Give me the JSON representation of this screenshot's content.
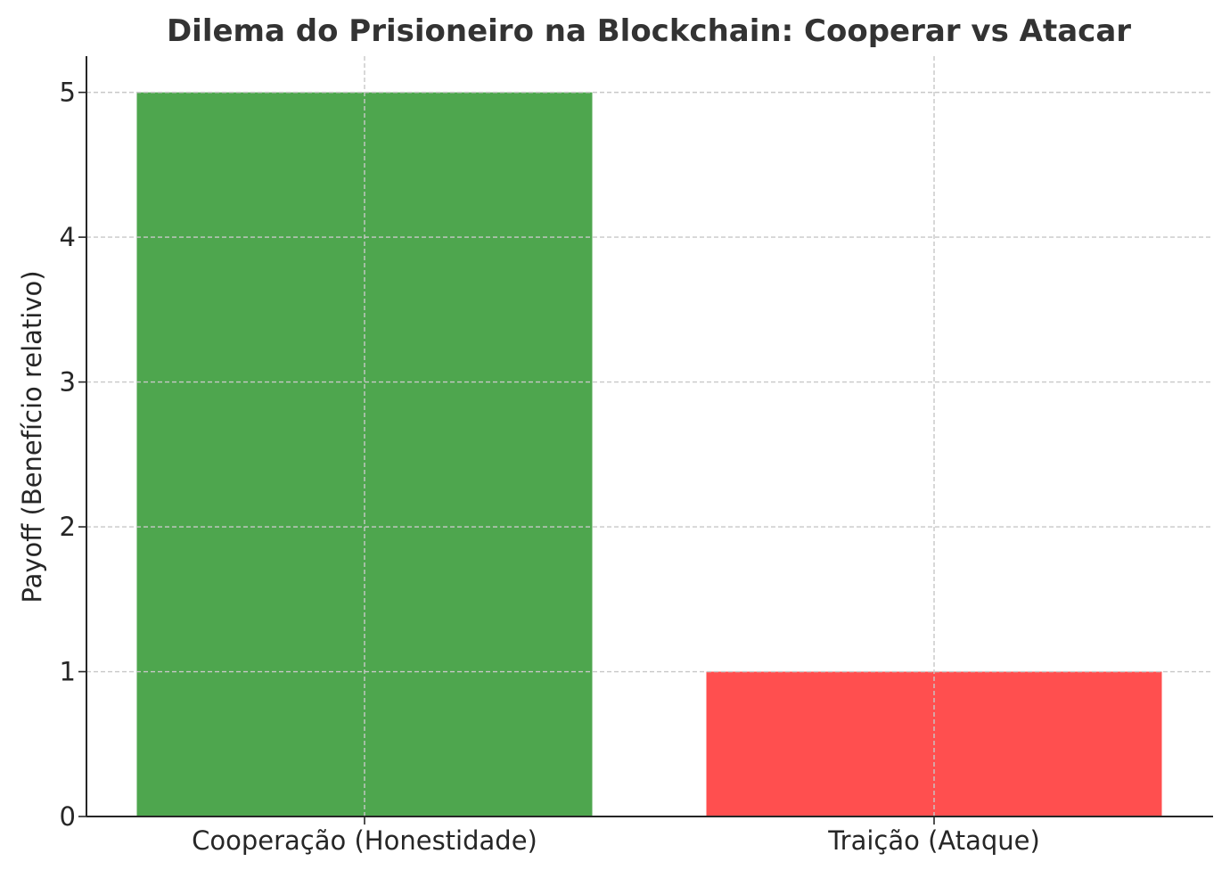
{
  "chart_data": {
    "type": "bar",
    "title": "Dilema do Prisioneiro na Blockchain: Cooperar vs Atacar",
    "xlabel": "",
    "ylabel": "Payoff (Benefício relativo)",
    "categories": [
      "Cooperação (Honestidade)",
      "Traição (Ataque)"
    ],
    "values": [
      5,
      1
    ],
    "colors": [
      "#4ea64e",
      "#ff4f4f"
    ],
    "ylim": [
      0,
      5.25
    ],
    "yticks": [
      "0",
      "1",
      "2",
      "3",
      "4",
      "5"
    ],
    "grid": true,
    "legend": false
  }
}
